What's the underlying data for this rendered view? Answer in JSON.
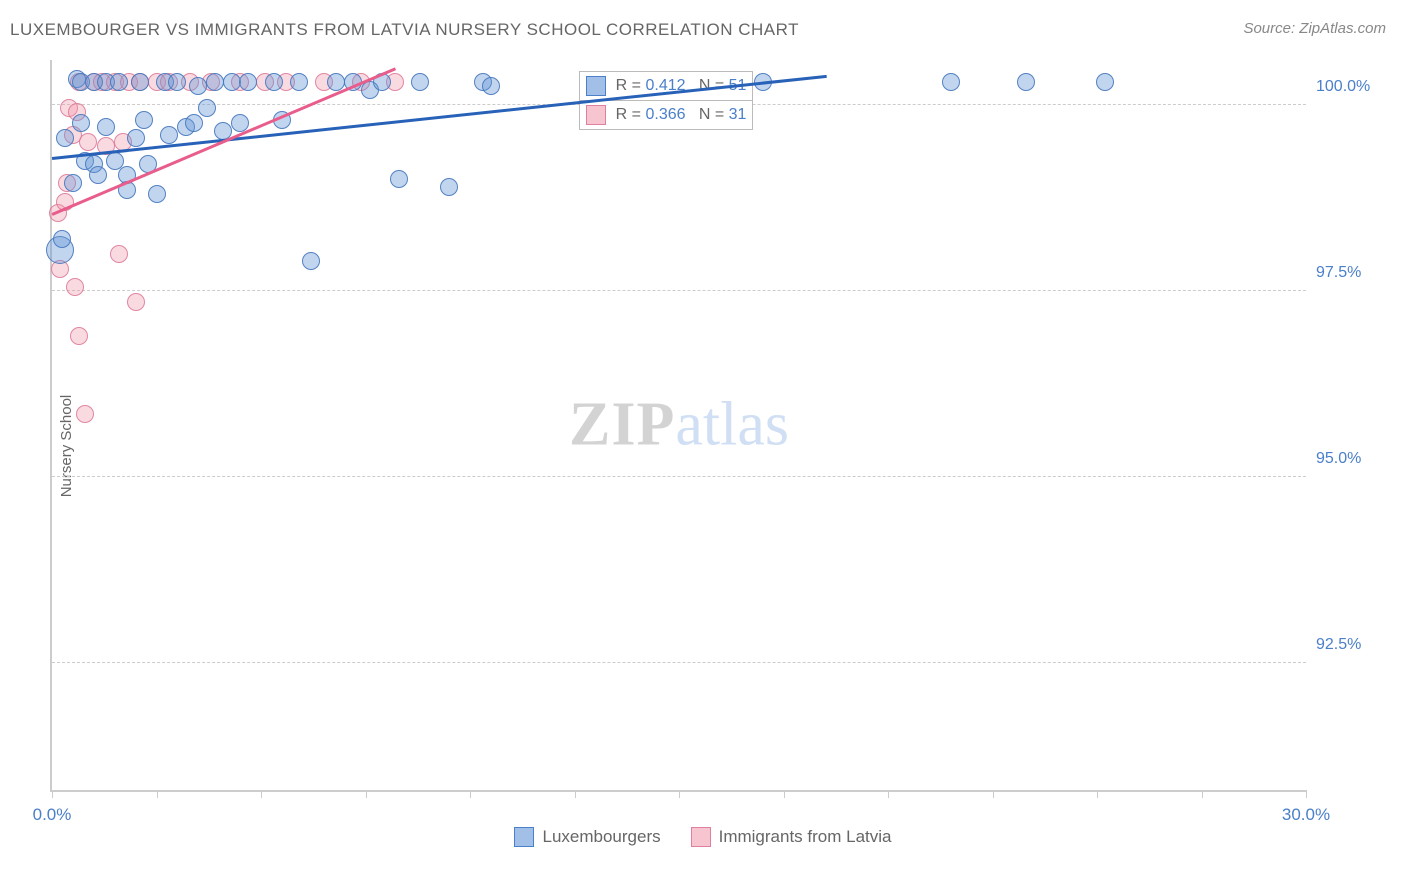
{
  "header": {
    "title": "LUXEMBOURGER VS IMMIGRANTS FROM LATVIA NURSERY SCHOOL CORRELATION CHART",
    "source": "Source: ZipAtlas.com"
  },
  "chart": {
    "type": "scatter",
    "y_axis_label": "Nursery School",
    "xlim": [
      0,
      30
    ],
    "ylim": [
      90.8,
      100.6
    ],
    "x_ticks": [
      0,
      2.5,
      5,
      7.5,
      10,
      12.5,
      15,
      17.5,
      20,
      22.5,
      25,
      27.5,
      30
    ],
    "x_tick_labels": {
      "0": "0.0%",
      "30": "30.0%"
    },
    "y_ticks": [
      92.5,
      95.0,
      97.5,
      100.0
    ],
    "y_tick_labels": [
      "92.5%",
      "95.0%",
      "97.5%",
      "100.0%"
    ],
    "background_color": "#ffffff",
    "grid_color": "#cccccc",
    "series": [
      {
        "name": "Luxembourgers",
        "color_fill": "rgba(100,150,215,0.4)",
        "color_stroke": "rgba(70,120,190,0.9)",
        "trend_color": "#2862b8",
        "R": "0.412",
        "N": "51",
        "trend": {
          "x1": 0,
          "y1": 99.3,
          "x2": 18.5,
          "y2": 100.4
        },
        "points": [
          {
            "x": 0.2,
            "y": 98.05,
            "r": 14
          },
          {
            "x": 0.25,
            "y": 98.2,
            "r": 9
          },
          {
            "x": 0.3,
            "y": 99.55,
            "r": 9
          },
          {
            "x": 0.5,
            "y": 98.95,
            "r": 9
          },
          {
            "x": 0.6,
            "y": 100.35,
            "r": 9
          },
          {
            "x": 0.7,
            "y": 100.3,
            "r": 9
          },
          {
            "x": 0.7,
            "y": 99.75,
            "r": 9
          },
          {
            "x": 0.8,
            "y": 99.25,
            "r": 9
          },
          {
            "x": 1.0,
            "y": 99.2,
            "r": 9
          },
          {
            "x": 1.0,
            "y": 100.3,
            "r": 9
          },
          {
            "x": 1.1,
            "y": 99.05,
            "r": 9
          },
          {
            "x": 1.3,
            "y": 99.7,
            "r": 9
          },
          {
            "x": 1.3,
            "y": 100.3,
            "r": 9
          },
          {
            "x": 1.5,
            "y": 99.25,
            "r": 9
          },
          {
            "x": 1.6,
            "y": 100.3,
            "r": 9
          },
          {
            "x": 1.8,
            "y": 99.05,
            "r": 9
          },
          {
            "x": 1.8,
            "y": 98.85,
            "r": 9
          },
          {
            "x": 2.0,
            "y": 99.55,
            "r": 9
          },
          {
            "x": 2.1,
            "y": 100.3,
            "r": 9
          },
          {
            "x": 2.2,
            "y": 99.8,
            "r": 9
          },
          {
            "x": 2.3,
            "y": 99.2,
            "r": 9
          },
          {
            "x": 2.5,
            "y": 98.8,
            "r": 9
          },
          {
            "x": 2.7,
            "y": 100.3,
            "r": 9
          },
          {
            "x": 2.8,
            "y": 99.6,
            "r": 9
          },
          {
            "x": 3.0,
            "y": 100.3,
            "r": 9
          },
          {
            "x": 3.2,
            "y": 99.7,
            "r": 9
          },
          {
            "x": 3.4,
            "y": 99.75,
            "r": 9
          },
          {
            "x": 3.5,
            "y": 100.25,
            "r": 9
          },
          {
            "x": 3.7,
            "y": 99.95,
            "r": 9
          },
          {
            "x": 3.9,
            "y": 100.3,
            "r": 9
          },
          {
            "x": 4.1,
            "y": 99.65,
            "r": 9
          },
          {
            "x": 4.3,
            "y": 100.3,
            "r": 9
          },
          {
            "x": 4.5,
            "y": 99.75,
            "r": 9
          },
          {
            "x": 4.7,
            "y": 100.3,
            "r": 9
          },
          {
            "x": 5.3,
            "y": 100.3,
            "r": 9
          },
          {
            "x": 5.5,
            "y": 99.8,
            "r": 9
          },
          {
            "x": 5.9,
            "y": 100.3,
            "r": 9
          },
          {
            "x": 6.2,
            "y": 97.9,
            "r": 9
          },
          {
            "x": 6.8,
            "y": 100.3,
            "r": 9
          },
          {
            "x": 7.2,
            "y": 100.3,
            "r": 9
          },
          {
            "x": 7.6,
            "y": 100.2,
            "r": 9
          },
          {
            "x": 7.9,
            "y": 100.3,
            "r": 9
          },
          {
            "x": 8.3,
            "y": 99.0,
            "r": 9
          },
          {
            "x": 8.8,
            "y": 100.3,
            "r": 9
          },
          {
            "x": 9.5,
            "y": 98.9,
            "r": 9
          },
          {
            "x": 10.3,
            "y": 100.3,
            "r": 9
          },
          {
            "x": 10.5,
            "y": 100.25,
            "r": 9
          },
          {
            "x": 21.5,
            "y": 100.3,
            "r": 9
          },
          {
            "x": 23.3,
            "y": 100.3,
            "r": 9
          },
          {
            "x": 25.2,
            "y": 100.3,
            "r": 9
          },
          {
            "x": 17.0,
            "y": 100.3,
            "r": 9
          }
        ]
      },
      {
        "name": "Immigrants from Latvia",
        "color_fill": "rgba(240,150,170,0.35)",
        "color_stroke": "rgba(220,120,150,0.85)",
        "trend_color": "#e85d8c",
        "R": "0.366",
        "N": "31",
        "trend": {
          "x1": 0,
          "y1": 98.55,
          "x2": 8.2,
          "y2": 100.5
        },
        "points": [
          {
            "x": 0.15,
            "y": 98.55,
            "r": 9
          },
          {
            "x": 0.2,
            "y": 97.8,
            "r": 9
          },
          {
            "x": 0.3,
            "y": 98.7,
            "r": 9
          },
          {
            "x": 0.35,
            "y": 98.95,
            "r": 9
          },
          {
            "x": 0.4,
            "y": 99.95,
            "r": 9
          },
          {
            "x": 0.5,
            "y": 99.6,
            "r": 9
          },
          {
            "x": 0.55,
            "y": 97.55,
            "r": 9
          },
          {
            "x": 0.6,
            "y": 99.9,
            "r": 9
          },
          {
            "x": 0.65,
            "y": 100.3,
            "r": 9
          },
          {
            "x": 0.65,
            "y": 96.9,
            "r": 9
          },
          {
            "x": 0.8,
            "y": 95.85,
            "r": 9
          },
          {
            "x": 0.85,
            "y": 99.5,
            "r": 9
          },
          {
            "x": 1.0,
            "y": 100.3,
            "r": 9
          },
          {
            "x": 1.2,
            "y": 100.3,
            "r": 9
          },
          {
            "x": 1.3,
            "y": 99.45,
            "r": 9
          },
          {
            "x": 1.5,
            "y": 100.3,
            "r": 9
          },
          {
            "x": 1.6,
            "y": 98.0,
            "r": 9
          },
          {
            "x": 1.7,
            "y": 99.5,
            "r": 9
          },
          {
            "x": 1.85,
            "y": 100.3,
            "r": 9
          },
          {
            "x": 2.0,
            "y": 97.35,
            "r": 9
          },
          {
            "x": 2.1,
            "y": 100.3,
            "r": 9
          },
          {
            "x": 2.5,
            "y": 100.3,
            "r": 9
          },
          {
            "x": 2.8,
            "y": 100.3,
            "r": 9
          },
          {
            "x": 3.3,
            "y": 100.3,
            "r": 9
          },
          {
            "x": 3.8,
            "y": 100.3,
            "r": 9
          },
          {
            "x": 4.5,
            "y": 100.3,
            "r": 9
          },
          {
            "x": 5.1,
            "y": 100.3,
            "r": 9
          },
          {
            "x": 5.6,
            "y": 100.3,
            "r": 9
          },
          {
            "x": 6.5,
            "y": 100.3,
            "r": 9
          },
          {
            "x": 7.4,
            "y": 100.3,
            "r": 9
          },
          {
            "x": 8.2,
            "y": 100.3,
            "r": 9
          }
        ]
      }
    ],
    "stats_boxes": [
      {
        "series_index": 0,
        "top_pct": 1.5,
        "left_pct": 42.0
      },
      {
        "series_index": 1,
        "top_pct": 5.5,
        "left_pct": 42.0
      }
    ],
    "watermark": {
      "zip": "ZIP",
      "atlas": "atlas"
    }
  },
  "bottom_legend": [
    {
      "series_index": 0
    },
    {
      "series_index": 1
    }
  ]
}
